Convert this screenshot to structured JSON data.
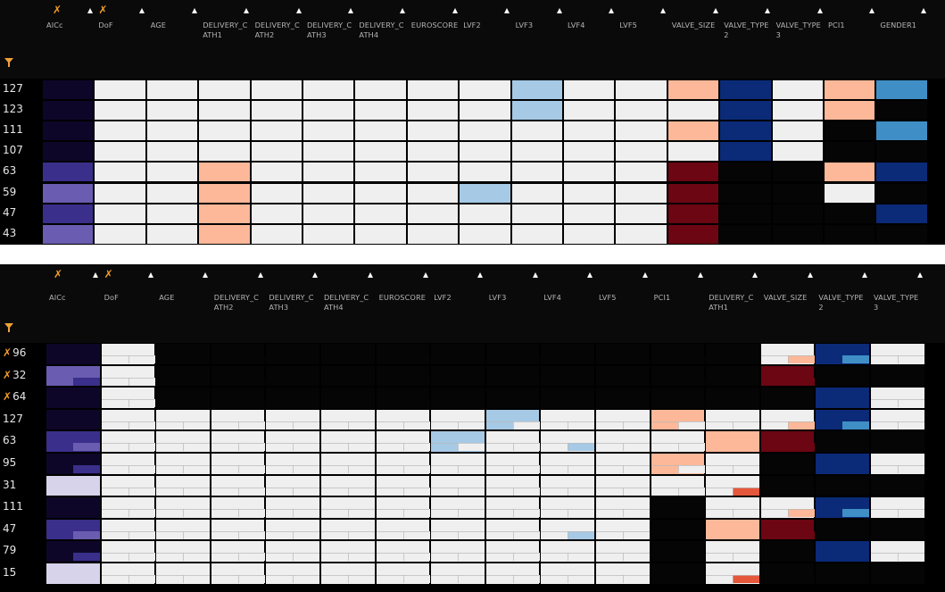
{
  "colors": {
    "background": "#000000",
    "cell_light": "#efefef",
    "cell_black": "#050505",
    "pin": "#f39c2a",
    "palette": {
      "aicc_dark": "#0e0628",
      "aicc_mid": "#3a2f8a",
      "aicc_light": "#6a5cb0",
      "aicc_pale": "#d7d3ea",
      "peach": "#fcb899",
      "red_dark": "#6b0612",
      "red_med": "#e5573b",
      "navy": "#0b2a78",
      "blue_med": "#3f8fc6",
      "blue_light": "#a6c9e5"
    }
  },
  "icons": {
    "pin": "pin-icon",
    "sort": "sort-asc-icon",
    "filter": "filter-icon"
  },
  "top": {
    "columns": [
      {
        "label": "AICc",
        "pinned": true
      },
      {
        "label": "DoF",
        "pinned": true
      },
      {
        "label": "AGE"
      },
      {
        "label": "DELIVERY_C\nATH1"
      },
      {
        "label": "DELIVERY_C\nATH2"
      },
      {
        "label": "DELIVERY_C\nATH3"
      },
      {
        "label": "DELIVERY_C\nATH4"
      },
      {
        "label": "EUROSCORE"
      },
      {
        "label": "LVF2"
      },
      {
        "label": "LVF3"
      },
      {
        "label": "LVF4"
      },
      {
        "label": "LVF5"
      },
      {
        "label": "VALVE_SIZE"
      },
      {
        "label": "VALVE_TYPE\n2"
      },
      {
        "label": "VALVE_TYPE\n3"
      },
      {
        "label": "PCI1"
      },
      {
        "label": "GENDER1"
      }
    ],
    "rows": [
      {
        "label": "127",
        "cells": [
          "aicc_dark",
          "L",
          "L",
          "L",
          "L",
          "L",
          "L",
          "L",
          "L",
          "blue_light",
          "L",
          "L",
          "peach",
          "navy",
          "L",
          "peach",
          "blue_med"
        ]
      },
      {
        "label": "123",
        "cells": [
          "aicc_dark",
          "L",
          "L",
          "L",
          "L",
          "L",
          "L",
          "L",
          "L",
          "blue_light",
          "L",
          "L",
          "L",
          "navy",
          "L",
          "peach",
          "K"
        ]
      },
      {
        "label": "111",
        "cells": [
          "aicc_dark",
          "L",
          "L",
          "L",
          "L",
          "L",
          "L",
          "L",
          "L",
          "L",
          "L",
          "L",
          "peach",
          "navy",
          "L",
          "K",
          "blue_med"
        ]
      },
      {
        "label": "107",
        "cells": [
          "aicc_dark",
          "L",
          "L",
          "L",
          "L",
          "L",
          "L",
          "L",
          "L",
          "L",
          "L",
          "L",
          "L",
          "navy",
          "L",
          "K",
          "K"
        ]
      },
      {
        "label": "63",
        "cells": [
          "aicc_mid",
          "L",
          "L",
          "peach",
          "L",
          "L",
          "L",
          "L",
          "L",
          "L",
          "L",
          "L",
          "red_dark",
          "K",
          "K",
          "peach",
          "navy"
        ]
      },
      {
        "label": "59",
        "cells": [
          "aicc_light",
          "L",
          "L",
          "peach",
          "L",
          "L",
          "L",
          "L",
          "blue_light",
          "L",
          "L",
          "L",
          "red_dark",
          "K",
          "K",
          "L",
          "K"
        ]
      },
      {
        "label": "47",
        "cells": [
          "aicc_mid",
          "L",
          "L",
          "peach",
          "L",
          "L",
          "L",
          "L",
          "L",
          "L",
          "L",
          "L",
          "red_dark",
          "K",
          "K",
          "K",
          "navy"
        ]
      },
      {
        "label": "43",
        "cells": [
          "aicc_light",
          "L",
          "L",
          "peach",
          "L",
          "L",
          "L",
          "L",
          "L",
          "L",
          "L",
          "L",
          "red_dark",
          "K",
          "K",
          "K",
          "K"
        ]
      }
    ]
  },
  "bottom": {
    "columns": [
      {
        "label": "AICc",
        "pinned": true
      },
      {
        "label": "DoF",
        "pinned": true
      },
      {
        "label": "AGE"
      },
      {
        "label": "DELIVERY_C\nATH2"
      },
      {
        "label": "DELIVERY_C\nATH3"
      },
      {
        "label": "DELIVERY_C\nATH4"
      },
      {
        "label": "EUROSCORE"
      },
      {
        "label": "LVF2"
      },
      {
        "label": "LVF3"
      },
      {
        "label": "LVF4"
      },
      {
        "label": "LVF5"
      },
      {
        "label": "PCI1"
      },
      {
        "label": "DELIVERY_C\nATH1"
      },
      {
        "label": "VALVE_SIZE"
      },
      {
        "label": "VALVE_TYPE\n2"
      },
      {
        "label": "VALVE_TYPE\n3"
      }
    ],
    "rows": [
      {
        "label": "96",
        "pinned": true,
        "cells": [
          [
            "aicc_dark",
            "aicc_dark"
          ],
          [
            "L",
            "L"
          ],
          [
            "K",
            "K"
          ],
          [
            "K",
            "K"
          ],
          [
            "K",
            "K"
          ],
          [
            "K",
            "K"
          ],
          [
            "K",
            "K"
          ],
          [
            "K",
            "K"
          ],
          [
            "K",
            "K"
          ],
          [
            "K",
            "K"
          ],
          [
            "K",
            "K"
          ],
          [
            "K",
            "K"
          ],
          [
            "K",
            "K"
          ],
          [
            "L",
            "peach"
          ],
          [
            "navy",
            "blue_med"
          ],
          [
            "L",
            "L"
          ]
        ]
      },
      {
        "label": "32",
        "pinned": true,
        "cells": [
          [
            "aicc_light",
            "aicc_mid"
          ],
          [
            "L",
            "L"
          ],
          [
            "K",
            "K"
          ],
          [
            "K",
            "K"
          ],
          [
            "K",
            "K"
          ],
          [
            "K",
            "K"
          ],
          [
            "K",
            "K"
          ],
          [
            "K",
            "K"
          ],
          [
            "K",
            "K"
          ],
          [
            "K",
            "K"
          ],
          [
            "K",
            "K"
          ],
          [
            "K",
            "K"
          ],
          [
            "K",
            "K"
          ],
          [
            "red_dark",
            "red_dark"
          ],
          [
            "K",
            "K"
          ],
          [
            "K",
            "K"
          ]
        ]
      },
      {
        "label": "64",
        "pinned": true,
        "cells": [
          [
            "aicc_dark",
            "aicc_dark"
          ],
          [
            "L",
            "L"
          ],
          [
            "K",
            "K"
          ],
          [
            "K",
            "K"
          ],
          [
            "K",
            "K"
          ],
          [
            "K",
            "K"
          ],
          [
            "K",
            "K"
          ],
          [
            "K",
            "K"
          ],
          [
            "K",
            "K"
          ],
          [
            "K",
            "K"
          ],
          [
            "K",
            "K"
          ],
          [
            "K",
            "K"
          ],
          [
            "K",
            "K"
          ],
          [
            "K",
            "K"
          ],
          [
            "navy",
            "navy"
          ],
          [
            "L",
            "L"
          ]
        ]
      },
      {
        "label": "127",
        "cells": [
          [
            "aicc_dark",
            "aicc_dark"
          ],
          [
            "L",
            "L"
          ],
          [
            "L",
            "L"
          ],
          [
            "L",
            "L"
          ],
          [
            "L",
            "L"
          ],
          [
            "L",
            "L"
          ],
          [
            "L",
            "L"
          ],
          [
            "L",
            "L"
          ],
          [
            "blue_light",
            "L"
          ],
          [
            "L",
            "L"
          ],
          [
            "L",
            "L"
          ],
          [
            "peach",
            "L"
          ],
          [
            "L",
            "L"
          ],
          [
            "L",
            "peach"
          ],
          [
            "navy",
            "blue_med"
          ],
          [
            "L",
            "L"
          ]
        ]
      },
      {
        "label": "63",
        "cells": [
          [
            "aicc_mid",
            "aicc_light"
          ],
          [
            "L",
            "L"
          ],
          [
            "L",
            "L"
          ],
          [
            "L",
            "L"
          ],
          [
            "L",
            "L"
          ],
          [
            "L",
            "L"
          ],
          [
            "L",
            "L"
          ],
          [
            "blue_light",
            "L"
          ],
          [
            "L",
            "L"
          ],
          [
            "L",
            "blue_light"
          ],
          [
            "L",
            "L"
          ],
          [
            "L",
            "L"
          ],
          [
            "peach",
            "peach"
          ],
          [
            "red_dark",
            "red_dark"
          ],
          [
            "K",
            "K"
          ],
          [
            "K",
            "K"
          ]
        ]
      },
      {
        "label": "95",
        "cells": [
          [
            "aicc_dark",
            "aicc_mid"
          ],
          [
            "L",
            "L"
          ],
          [
            "L",
            "L"
          ],
          [
            "L",
            "L"
          ],
          [
            "L",
            "L"
          ],
          [
            "L",
            "L"
          ],
          [
            "L",
            "L"
          ],
          [
            "L",
            "L"
          ],
          [
            "L",
            "L"
          ],
          [
            "L",
            "L"
          ],
          [
            "L",
            "L"
          ],
          [
            "peach",
            "L"
          ],
          [
            "L",
            "L"
          ],
          [
            "K",
            "K"
          ],
          [
            "navy",
            "navy"
          ],
          [
            "L",
            "L"
          ]
        ]
      },
      {
        "label": "31",
        "cells": [
          [
            "aicc_pale",
            "aicc_pale"
          ],
          [
            "L",
            "L"
          ],
          [
            "L",
            "L"
          ],
          [
            "L",
            "L"
          ],
          [
            "L",
            "L"
          ],
          [
            "L",
            "L"
          ],
          [
            "L",
            "L"
          ],
          [
            "L",
            "L"
          ],
          [
            "L",
            "L"
          ],
          [
            "L",
            "L"
          ],
          [
            "L",
            "L"
          ],
          [
            "L",
            "L"
          ],
          [
            "L",
            "red_med"
          ],
          [
            "K",
            "K"
          ],
          [
            "K",
            "K"
          ],
          [
            "K",
            "K"
          ]
        ]
      },
      {
        "label": "111",
        "cells": [
          [
            "aicc_dark",
            "aicc_dark"
          ],
          [
            "L",
            "L"
          ],
          [
            "L",
            "L"
          ],
          [
            "L",
            "L"
          ],
          [
            "L",
            "L"
          ],
          [
            "L",
            "L"
          ],
          [
            "L",
            "L"
          ],
          [
            "L",
            "L"
          ],
          [
            "L",
            "L"
          ],
          [
            "L",
            "L"
          ],
          [
            "L",
            "L"
          ],
          [
            "K",
            "K"
          ],
          [
            "L",
            "L"
          ],
          [
            "L",
            "peach"
          ],
          [
            "navy",
            "blue_med"
          ],
          [
            "L",
            "L"
          ]
        ]
      },
      {
        "label": "47",
        "cells": [
          [
            "aicc_mid",
            "aicc_light"
          ],
          [
            "L",
            "L"
          ],
          [
            "L",
            "L"
          ],
          [
            "L",
            "L"
          ],
          [
            "L",
            "L"
          ],
          [
            "L",
            "L"
          ],
          [
            "L",
            "L"
          ],
          [
            "L",
            "L"
          ],
          [
            "L",
            "L"
          ],
          [
            "L",
            "blue_light"
          ],
          [
            "L",
            "L"
          ],
          [
            "K",
            "K"
          ],
          [
            "peach",
            "peach"
          ],
          [
            "red_dark",
            "red_dark"
          ],
          [
            "K",
            "K"
          ],
          [
            "K",
            "K"
          ]
        ]
      },
      {
        "label": "79",
        "cells": [
          [
            "aicc_dark",
            "aicc_mid"
          ],
          [
            "L",
            "L"
          ],
          [
            "L",
            "L"
          ],
          [
            "L",
            "L"
          ],
          [
            "L",
            "L"
          ],
          [
            "L",
            "L"
          ],
          [
            "L",
            "L"
          ],
          [
            "L",
            "L"
          ],
          [
            "L",
            "L"
          ],
          [
            "L",
            "L"
          ],
          [
            "L",
            "L"
          ],
          [
            "K",
            "K"
          ],
          [
            "L",
            "L"
          ],
          [
            "K",
            "K"
          ],
          [
            "navy",
            "navy"
          ],
          [
            "L",
            "L"
          ]
        ]
      },
      {
        "label": "15",
        "cells": [
          [
            "aicc_pale",
            "aicc_pale"
          ],
          [
            "L",
            "L"
          ],
          [
            "L",
            "L"
          ],
          [
            "L",
            "L"
          ],
          [
            "L",
            "L"
          ],
          [
            "L",
            "L"
          ],
          [
            "L",
            "L"
          ],
          [
            "L",
            "L"
          ],
          [
            "L",
            "L"
          ],
          [
            "L",
            "L"
          ],
          [
            "L",
            "L"
          ],
          [
            "K",
            "K"
          ],
          [
            "L",
            "red_med"
          ],
          [
            "K",
            "K"
          ],
          [
            "K",
            "K"
          ],
          [
            "K",
            "K"
          ]
        ]
      }
    ]
  }
}
